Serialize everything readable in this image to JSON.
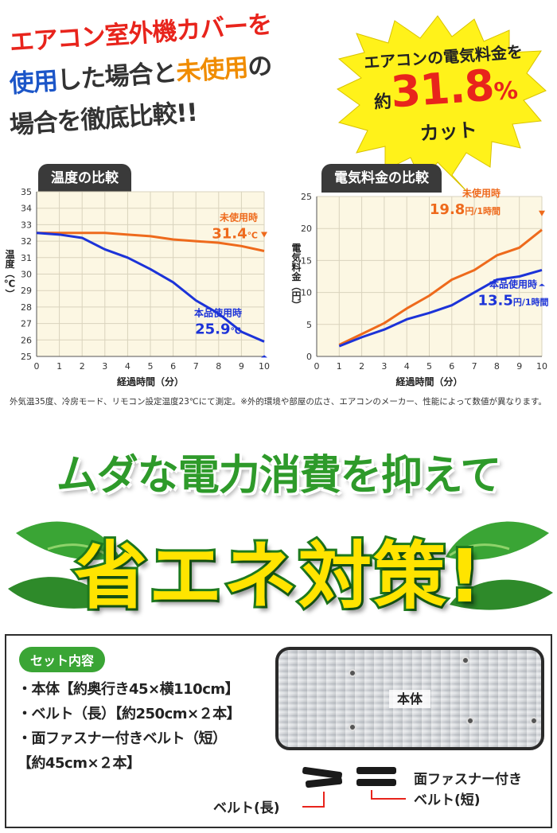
{
  "headline": {
    "line1": "エアコン室外機カバーを",
    "line2_a": "使用",
    "line2_b": "した場合と",
    "line2_c": "未使用",
    "line2_d": "の",
    "line3": "場合を徹底比較!!"
  },
  "badge": {
    "line1": "エアコンの電気料金を",
    "prefix": "約",
    "value": "31.8",
    "unit": "%",
    "line3": "カット"
  },
  "chart_data": [
    {
      "type": "line",
      "title": "温度の比較",
      "xlabel": "経過時間（分）",
      "ylabel": "温度（℃）",
      "xlim": [
        0,
        10
      ],
      "ylim": [
        25,
        35
      ],
      "x_ticks": [
        0,
        1,
        2,
        3,
        4,
        5,
        6,
        7,
        8,
        9,
        10
      ],
      "y_ticks": [
        25,
        26,
        27,
        28,
        29,
        30,
        31,
        32,
        33,
        34,
        35
      ],
      "grid": true,
      "series": [
        {
          "name": "未使用時",
          "color": "#ee6a1c",
          "x": [
            0,
            1,
            2,
            3,
            4,
            5,
            6,
            7,
            8,
            9,
            10
          ],
          "y": [
            32.5,
            32.5,
            32.5,
            32.5,
            32.4,
            32.3,
            32.1,
            32.0,
            31.9,
            31.7,
            31.4
          ]
        },
        {
          "name": "本品使用時",
          "color": "#1c33d8",
          "x": [
            0,
            1,
            2,
            3,
            4,
            5,
            6,
            7,
            8,
            9,
            10
          ],
          "y": [
            32.5,
            32.4,
            32.2,
            31.5,
            31.0,
            30.3,
            29.5,
            28.4,
            27.6,
            26.5,
            25.9
          ]
        }
      ],
      "annotations": [
        {
          "series": "未使用時",
          "label": "未使用時",
          "value": "31.4",
          "unit": "℃"
        },
        {
          "series": "本品使用時",
          "label": "本品使用時",
          "value": "25.9",
          "unit": "℃"
        }
      ]
    },
    {
      "type": "line",
      "title": "電気料金の比較",
      "xlabel": "経過時間（分）",
      "ylabel": "電気料金（円）",
      "xlim": [
        0,
        10
      ],
      "ylim": [
        0,
        25
      ],
      "x_ticks": [
        0,
        1,
        2,
        3,
        4,
        5,
        6,
        7,
        8,
        9,
        10
      ],
      "y_ticks": [
        0,
        5,
        10,
        15,
        20,
        25
      ],
      "grid": true,
      "series": [
        {
          "name": "未使用時",
          "color": "#ee6a1c",
          "x": [
            1,
            2,
            3,
            4,
            5,
            6,
            7,
            8,
            9,
            10
          ],
          "y": [
            1.8,
            3.5,
            5.2,
            7.5,
            9.5,
            12.0,
            13.5,
            15.8,
            17.0,
            19.8
          ]
        },
        {
          "name": "本品使用時",
          "color": "#1c33d8",
          "x": [
            1,
            2,
            3,
            4,
            5,
            6,
            7,
            8,
            9,
            10
          ],
          "y": [
            1.6,
            3.0,
            4.2,
            5.8,
            6.8,
            8.0,
            10.0,
            12.0,
            12.5,
            13.5
          ]
        }
      ],
      "annotations": [
        {
          "series": "未使用時",
          "label": "未使用時",
          "value": "19.8",
          "unit": "円/1時間"
        },
        {
          "series": "本品使用時",
          "label": "本品使用時",
          "value": "13.5",
          "unit": "円/1時間"
        }
      ]
    }
  ],
  "note": "外気温35度、冷房モード、リモコン設定温度23℃にて測定。※外的環境や部屋の広さ、エアコンのメーカー、性能によって数値が異なります。",
  "slogan": {
    "line1": "ムダな電力消費を抑えて",
    "line2": "省エネ対策!"
  },
  "set": {
    "label": "セット内容",
    "items": [
      "・本体【約奥行き45×横110cm】",
      "・ベルト（長）【約250cm×２本】",
      "・面ファスナー付きベルト（短）",
      "【約45cm×２本】"
    ],
    "product_label": "本体",
    "belt_long_label": "ベルト(長)",
    "belt_short_label_1": "面ファスナー付き",
    "belt_short_label_2": "ベルト(短)"
  },
  "colors": {
    "orange_series": "#ee6a1c",
    "blue_series": "#1c33d8",
    "chart_bg": "#fcf7e3",
    "badge_yellow": "#fff21a",
    "slogan_green": "#2e9a2a",
    "slogan_yellow": "#ffe400"
  }
}
